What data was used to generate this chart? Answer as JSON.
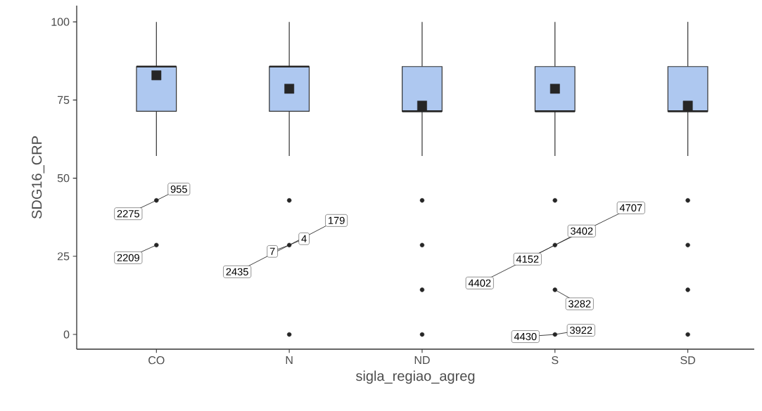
{
  "chart_data": {
    "type": "box",
    "xlabel": "sigla_regiao_agreg",
    "ylabel": "SDG16_CRP",
    "categories": [
      "CO",
      "N",
      "ND",
      "S",
      "SD"
    ],
    "color": "#aec8f0",
    "ylim": [
      -4.7,
      105.2
    ],
    "yticks": [
      0,
      25,
      50,
      75,
      100
    ],
    "grid": false,
    "marker": "circle",
    "boxes": [
      {
        "low": 57.1,
        "q1": 71.4,
        "median": 85.7,
        "q3": 85.7,
        "high": 100,
        "mean": 82.9,
        "outliers": [
          42.9,
          28.6
        ]
      },
      {
        "low": 57.1,
        "q1": 71.4,
        "median": 85.7,
        "q3": 85.7,
        "high": 100,
        "mean": 78.6,
        "outliers": [
          42.9,
          28.6,
          0
        ]
      },
      {
        "low": 57.1,
        "q1": 71.4,
        "median": 71.4,
        "q3": 85.7,
        "high": 100,
        "mean": 73.2,
        "outliers": [
          42.9,
          28.6,
          14.3,
          0
        ]
      },
      {
        "low": 57.1,
        "q1": 71.4,
        "median": 71.4,
        "q3": 85.7,
        "high": 100,
        "mean": 78.6,
        "outliers": [
          42.9,
          28.6,
          14.3,
          0
        ]
      },
      {
        "low": 57.1,
        "q1": 71.4,
        "median": 71.4,
        "q3": 85.7,
        "high": 100,
        "mean": 73.2,
        "outliers": [
          42.9,
          28.6,
          14.3,
          0
        ]
      }
    ],
    "annotations": [
      "955",
      "2275",
      "2209",
      "2435",
      "7",
      "4",
      "179",
      "4707",
      "3402",
      "4152",
      "4402",
      "3282",
      "4430",
      "3922"
    ]
  }
}
